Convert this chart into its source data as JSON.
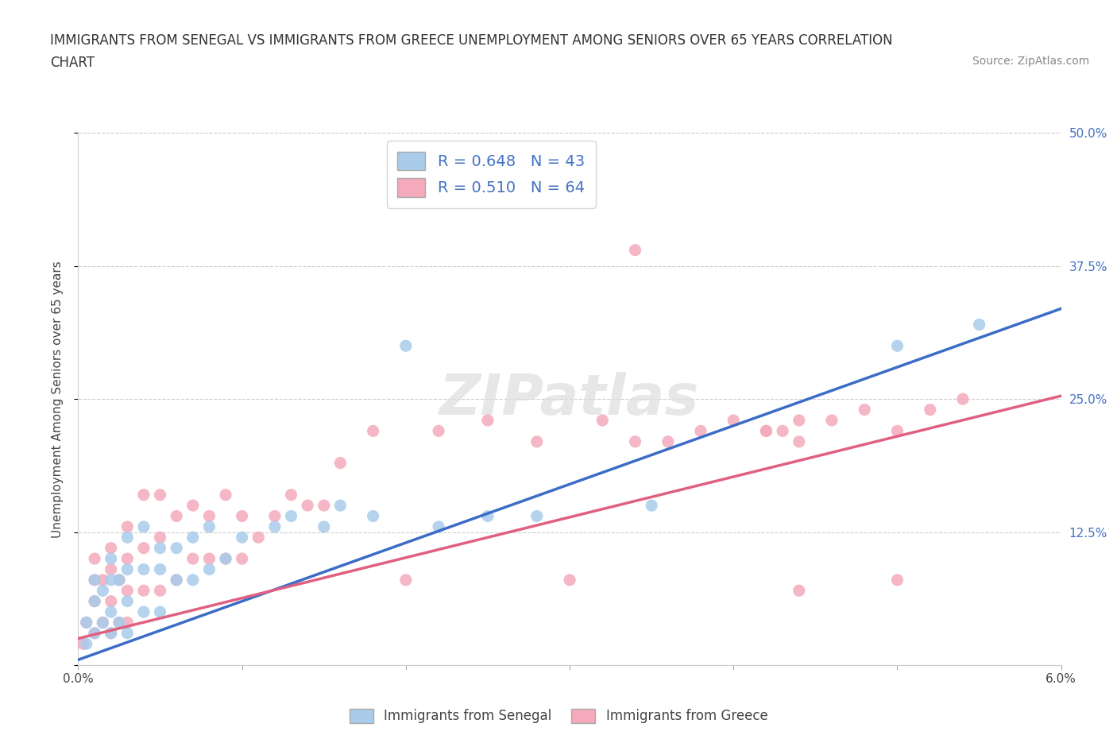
{
  "title_line1": "IMMIGRANTS FROM SENEGAL VS IMMIGRANTS FROM GREECE UNEMPLOYMENT AMONG SENIORS OVER 65 YEARS CORRELATION",
  "title_line2": "CHART",
  "source": "Source: ZipAtlas.com",
  "ylabel": "Unemployment Among Seniors over 65 years",
  "watermark": "ZIPatlas",
  "legend_blue_r": "R = 0.648",
  "legend_blue_n": "N = 43",
  "legend_pink_r": "R = 0.510",
  "legend_pink_n": "N = 64",
  "legend_blue_label": "Immigrants from Senegal",
  "legend_pink_label": "Immigrants from Greece",
  "blue_color": "#A8CCEA",
  "pink_color": "#F4AABB",
  "blue_line_color": "#3B6CC7",
  "pink_line_color": "#E06080",
  "xmin": 0.0,
  "xmax": 0.06,
  "ymin": 0.0,
  "ymax": 0.5,
  "yticks": [
    0.0,
    0.125,
    0.25,
    0.375,
    0.5
  ],
  "ytick_labels": [
    "",
    "12.5%",
    "25.0%",
    "37.5%",
    "50.0%"
  ],
  "xticks": [
    0.0,
    0.01,
    0.02,
    0.03,
    0.04,
    0.05,
    0.06
  ],
  "xtick_labels": [
    "0.0%",
    "",
    "",
    "",
    "",
    "",
    "6.0%"
  ],
  "background_color": "#FFFFFF",
  "blue_line_slope": 5.5,
  "blue_line_intercept": 0.005,
  "pink_line_slope": 3.8,
  "pink_line_intercept": 0.025,
  "blue_scatter_x": [
    0.0005,
    0.0005,
    0.001,
    0.001,
    0.001,
    0.0015,
    0.0015,
    0.002,
    0.002,
    0.002,
    0.002,
    0.0025,
    0.0025,
    0.003,
    0.003,
    0.003,
    0.003,
    0.004,
    0.004,
    0.004,
    0.005,
    0.005,
    0.005,
    0.006,
    0.006,
    0.007,
    0.007,
    0.008,
    0.008,
    0.009,
    0.01,
    0.012,
    0.013,
    0.015,
    0.016,
    0.018,
    0.02,
    0.022,
    0.025,
    0.028,
    0.035,
    0.05,
    0.055
  ],
  "blue_scatter_y": [
    0.02,
    0.04,
    0.03,
    0.06,
    0.08,
    0.04,
    0.07,
    0.03,
    0.05,
    0.08,
    0.1,
    0.04,
    0.08,
    0.03,
    0.06,
    0.09,
    0.12,
    0.05,
    0.09,
    0.13,
    0.05,
    0.09,
    0.11,
    0.08,
    0.11,
    0.08,
    0.12,
    0.09,
    0.13,
    0.1,
    0.12,
    0.13,
    0.14,
    0.13,
    0.15,
    0.14,
    0.3,
    0.13,
    0.14,
    0.14,
    0.15,
    0.3,
    0.32
  ],
  "pink_scatter_x": [
    0.0003,
    0.0005,
    0.001,
    0.001,
    0.001,
    0.001,
    0.0015,
    0.0015,
    0.002,
    0.002,
    0.002,
    0.002,
    0.0025,
    0.0025,
    0.003,
    0.003,
    0.003,
    0.003,
    0.004,
    0.004,
    0.004,
    0.005,
    0.005,
    0.005,
    0.006,
    0.006,
    0.007,
    0.007,
    0.008,
    0.008,
    0.009,
    0.009,
    0.01,
    0.01,
    0.011,
    0.012,
    0.013,
    0.014,
    0.015,
    0.016,
    0.018,
    0.02,
    0.022,
    0.025,
    0.028,
    0.03,
    0.032,
    0.034,
    0.036,
    0.038,
    0.04,
    0.042,
    0.044,
    0.046,
    0.048,
    0.05,
    0.052,
    0.054,
    0.042,
    0.044,
    0.034,
    0.043,
    0.05,
    0.044
  ],
  "pink_scatter_y": [
    0.02,
    0.04,
    0.03,
    0.06,
    0.08,
    0.1,
    0.04,
    0.08,
    0.03,
    0.06,
    0.09,
    0.11,
    0.04,
    0.08,
    0.04,
    0.07,
    0.1,
    0.13,
    0.07,
    0.11,
    0.16,
    0.07,
    0.12,
    0.16,
    0.08,
    0.14,
    0.1,
    0.15,
    0.1,
    0.14,
    0.1,
    0.16,
    0.1,
    0.14,
    0.12,
    0.14,
    0.16,
    0.15,
    0.15,
    0.19,
    0.22,
    0.08,
    0.22,
    0.23,
    0.21,
    0.08,
    0.23,
    0.21,
    0.21,
    0.22,
    0.23,
    0.22,
    0.07,
    0.23,
    0.24,
    0.08,
    0.24,
    0.25,
    0.22,
    0.23,
    0.39,
    0.22,
    0.22,
    0.21
  ],
  "title_fontsize": 12,
  "source_fontsize": 10,
  "axis_label_fontsize": 11,
  "tick_fontsize": 11,
  "legend_fontsize": 14,
  "watermark_fontsize": 52
}
